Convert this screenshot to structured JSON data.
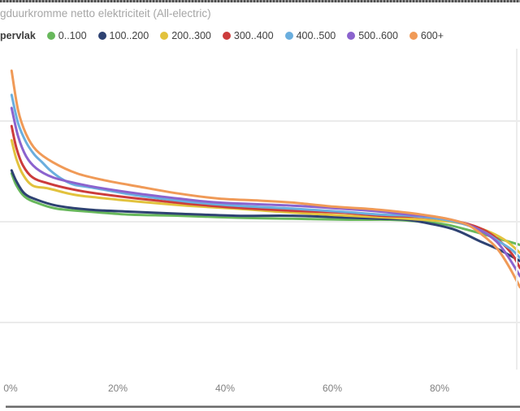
{
  "chart_data": {
    "type": "line",
    "title": "gduurkromme netto elektriciteit (All-electric)",
    "title_note": "title cropped at left edge of screenshot",
    "legend_title": "pervlak",
    "legend_position": "top",
    "grid": "horizontal gridlines only",
    "x_tick_labels": [
      "0%",
      "20%",
      "40%",
      "60%",
      "80%"
    ],
    "x_ticks_pct": [
      0,
      20,
      40,
      60,
      80
    ],
    "x_visible_range_pct": [
      0,
      95
    ],
    "y_axis_note": "y-axis tick labels cropped out of view; values estimated in gridline units (1 unit = one gridline spacing, 0 at middle gridline)",
    "gridline_values": [
      1,
      0,
      -1
    ],
    "colors": {
      "gridline": "#ebebeb",
      "title_text": "#a6a6a6",
      "axis_label_text": "#808080",
      "legend_text": "#404040"
    },
    "series": [
      {
        "name": "0..100",
        "color": "#68b85c",
        "points": [
          [
            0.2,
            0.48
          ],
          [
            1.1,
            0.36
          ],
          [
            2.6,
            0.25
          ],
          [
            4.8,
            0.19
          ],
          [
            8.6,
            0.13
          ],
          [
            14.7,
            0.1
          ],
          [
            22.3,
            0.07
          ],
          [
            31.4,
            0.06
          ],
          [
            42.0,
            0.04
          ],
          [
            52.6,
            0.03
          ],
          [
            63.2,
            0.02
          ],
          [
            70.8,
            0.02
          ],
          [
            76.8,
            0.0
          ],
          [
            81.4,
            -0.03
          ],
          [
            85.9,
            -0.09
          ],
          [
            90.5,
            -0.16
          ],
          [
            95.0,
            -0.23
          ]
        ]
      },
      {
        "name": "100..200",
        "color": "#2e4272",
        "points": [
          [
            0.2,
            0.51
          ],
          [
            1.1,
            0.4
          ],
          [
            2.6,
            0.28
          ],
          [
            4.8,
            0.22
          ],
          [
            8.6,
            0.16
          ],
          [
            14.7,
            0.12
          ],
          [
            22.3,
            0.1
          ],
          [
            31.4,
            0.08
          ],
          [
            42.0,
            0.06
          ],
          [
            52.6,
            0.06
          ],
          [
            63.2,
            0.04
          ],
          [
            69.2,
            0.03
          ],
          [
            73.8,
            0.02
          ],
          [
            78.3,
            -0.02
          ],
          [
            82.9,
            -0.08
          ],
          [
            87.4,
            -0.19
          ],
          [
            91.2,
            -0.28
          ],
          [
            95.0,
            -0.39
          ]
        ]
      },
      {
        "name": "200..300",
        "color": "#e2c23d",
        "points": [
          [
            0.2,
            0.81
          ],
          [
            1.1,
            0.62
          ],
          [
            2.3,
            0.47
          ],
          [
            4.1,
            0.36
          ],
          [
            7.1,
            0.33
          ],
          [
            11.7,
            0.27
          ],
          [
            16.2,
            0.24
          ],
          [
            23.8,
            0.2
          ],
          [
            32.9,
            0.16
          ],
          [
            42.0,
            0.13
          ],
          [
            52.6,
            0.09
          ],
          [
            63.2,
            0.06
          ],
          [
            70.8,
            0.04
          ],
          [
            76.8,
            0.02
          ],
          [
            82.1,
            0.0
          ],
          [
            85.9,
            -0.04
          ],
          [
            89.7,
            -0.11
          ],
          [
            92.7,
            -0.2
          ],
          [
            95.0,
            -0.31
          ]
        ]
      },
      {
        "name": "300..400",
        "color": "#cc3c3c",
        "points": [
          [
            0.2,
            0.95
          ],
          [
            1.1,
            0.73
          ],
          [
            2.3,
            0.56
          ],
          [
            4.1,
            0.44
          ],
          [
            7.1,
            0.38
          ],
          [
            11.7,
            0.32
          ],
          [
            16.2,
            0.28
          ],
          [
            23.8,
            0.23
          ],
          [
            32.9,
            0.18
          ],
          [
            42.0,
            0.14
          ],
          [
            52.6,
            0.11
          ],
          [
            61.7,
            0.09
          ],
          [
            69.2,
            0.06
          ],
          [
            75.3,
            0.05
          ],
          [
            79.8,
            0.03
          ],
          [
            84.4,
            -0.01
          ],
          [
            88.2,
            -0.08
          ],
          [
            91.2,
            -0.19
          ],
          [
            93.5,
            -0.32
          ],
          [
            95.0,
            -0.46
          ]
        ]
      },
      {
        "name": "400..500",
        "color": "#6aaede",
        "points": [
          [
            0.2,
            1.26
          ],
          [
            1.4,
            0.98
          ],
          [
            2.9,
            0.79
          ],
          [
            4.4,
            0.67
          ],
          [
            5.9,
            0.59
          ],
          [
            7.4,
            0.51
          ],
          [
            9.4,
            0.43
          ],
          [
            11.7,
            0.37
          ],
          [
            13.9,
            0.35
          ],
          [
            16.2,
            0.33
          ],
          [
            23.8,
            0.26
          ],
          [
            32.9,
            0.2
          ],
          [
            42.0,
            0.16
          ],
          [
            52.6,
            0.13
          ],
          [
            61.7,
            0.1
          ],
          [
            69.2,
            0.07
          ],
          [
            74.5,
            0.06
          ],
          [
            79.8,
            0.03
          ],
          [
            84.4,
            -0.02
          ],
          [
            88.2,
            -0.1
          ],
          [
            91.2,
            -0.2
          ],
          [
            93.5,
            -0.28
          ],
          [
            95.0,
            -0.36
          ]
        ]
      },
      {
        "name": "500..600",
        "color": "#8b63ce",
        "points": [
          [
            0.2,
            1.13
          ],
          [
            1.4,
            0.85
          ],
          [
            2.9,
            0.65
          ],
          [
            4.8,
            0.53
          ],
          [
            7.9,
            0.44
          ],
          [
            12.4,
            0.38
          ],
          [
            16.2,
            0.34
          ],
          [
            23.8,
            0.28
          ],
          [
            31.4,
            0.23
          ],
          [
            38.9,
            0.19
          ],
          [
            52.6,
            0.16
          ],
          [
            61.7,
            0.13
          ],
          [
            69.2,
            0.1
          ],
          [
            74.5,
            0.07
          ],
          [
            79.1,
            0.05
          ],
          [
            83.6,
            0.0
          ],
          [
            87.4,
            -0.08
          ],
          [
            90.5,
            -0.19
          ],
          [
            92.7,
            -0.34
          ],
          [
            95.0,
            -0.54
          ]
        ]
      },
      {
        "name": "600+",
        "color": "#f09a57",
        "points": [
          [
            0.2,
            1.5
          ],
          [
            1.4,
            1.11
          ],
          [
            2.9,
            0.87
          ],
          [
            4.8,
            0.71
          ],
          [
            7.9,
            0.59
          ],
          [
            12.4,
            0.48
          ],
          [
            17.7,
            0.41
          ],
          [
            23.8,
            0.35
          ],
          [
            31.4,
            0.28
          ],
          [
            38.9,
            0.23
          ],
          [
            46.5,
            0.21
          ],
          [
            52.6,
            0.19
          ],
          [
            60.2,
            0.15
          ],
          [
            66.2,
            0.13
          ],
          [
            72.3,
            0.1
          ],
          [
            76.8,
            0.07
          ],
          [
            81.4,
            0.03
          ],
          [
            85.2,
            -0.03
          ],
          [
            88.2,
            -0.14
          ],
          [
            90.8,
            -0.27
          ],
          [
            92.9,
            -0.44
          ],
          [
            95.0,
            -0.65
          ]
        ]
      }
    ]
  }
}
